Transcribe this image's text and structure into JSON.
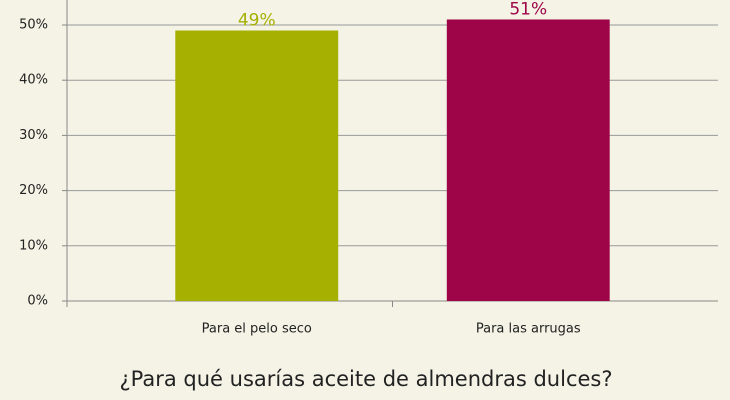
{
  "chart_data": {
    "type": "bar",
    "title": "¿Para qué usarías aceite de almendras dulces?",
    "categories": [
      "Para el pelo seco",
      "Para las arrugas"
    ],
    "values": [
      49,
      51
    ],
    "value_labels": [
      "49%",
      "51%"
    ],
    "colors": [
      "#a5b000",
      "#9e0548"
    ],
    "ylim": [
      0,
      55
    ],
    "yticks": [
      {
        "value": 0,
        "label": "0%"
      },
      {
        "value": 10,
        "label": "10%"
      },
      {
        "value": 20,
        "label": "20%"
      },
      {
        "value": 30,
        "label": "30%"
      },
      {
        "value": 40,
        "label": "40%"
      },
      {
        "value": 50,
        "label": "50%"
      }
    ],
    "grid": true
  }
}
